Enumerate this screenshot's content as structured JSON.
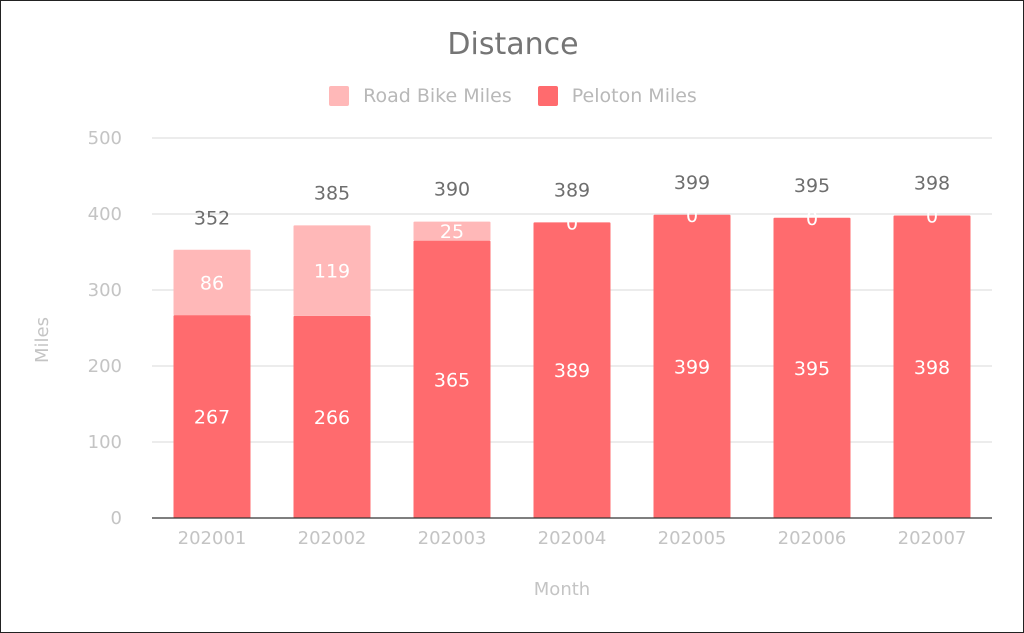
{
  "chart_data": {
    "type": "bar",
    "stacked": true,
    "title": "Distance",
    "xlabel": "Month",
    "ylabel": "Miles",
    "ylim": [
      0,
      500
    ],
    "yticks": [
      0,
      100,
      200,
      300,
      400,
      500
    ],
    "grid": true,
    "legend_position": "top",
    "categories": [
      "202001",
      "202002",
      "202003",
      "202004",
      "202005",
      "202006",
      "202007"
    ],
    "series": [
      {
        "name": "Peloton Miles",
        "color": "#ff6b6e",
        "values": [
          267,
          266,
          365,
          389,
          399,
          395,
          398
        ],
        "labels": [
          "267",
          "266",
          "365",
          "389",
          "399",
          "395",
          "398"
        ]
      },
      {
        "name": "Road Bike Miles",
        "color": "#ffb8b8",
        "values": [
          86,
          119,
          25,
          0,
          0,
          0,
          0
        ],
        "labels": [
          "86",
          "119",
          "25",
          "0",
          "0",
          "0",
          "0"
        ]
      }
    ],
    "legend_order": [
      "Road Bike Miles",
      "Peloton Miles"
    ],
    "totals": [
      352,
      385,
      390,
      389,
      399,
      395,
      398
    ]
  }
}
